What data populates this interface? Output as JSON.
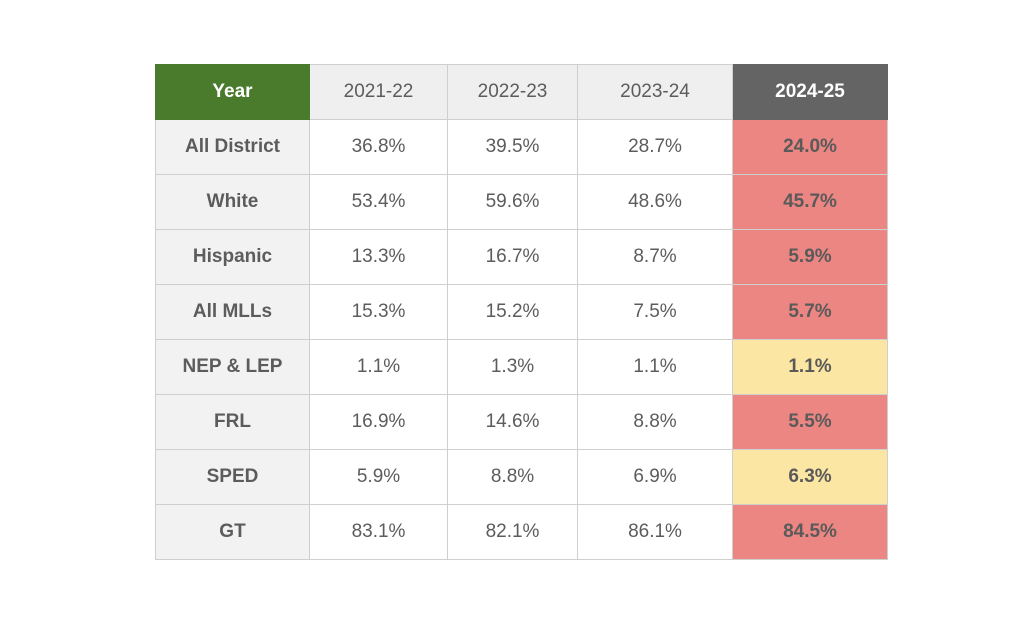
{
  "chart_data": {
    "type": "table",
    "corner_label": "Year",
    "columns": [
      "2021-22",
      "2022-23",
      "2023-24",
      "2024-25"
    ],
    "rows": [
      {
        "label": "All District",
        "values": [
          "36.8%",
          "39.5%",
          "28.7%",
          "24.0%"
        ],
        "highlight": "red"
      },
      {
        "label": "White",
        "values": [
          "53.4%",
          "59.6%",
          "48.6%",
          "45.7%"
        ],
        "highlight": "red"
      },
      {
        "label": "Hispanic",
        "values": [
          "13.3%",
          "16.7%",
          "8.7%",
          "5.9%"
        ],
        "highlight": "red"
      },
      {
        "label": "All MLLs",
        "values": [
          "15.3%",
          "15.2%",
          "7.5%",
          "5.7%"
        ],
        "highlight": "red"
      },
      {
        "label": "NEP & LEP",
        "values": [
          "1.1%",
          "1.3%",
          "1.1%",
          "1.1%"
        ],
        "highlight": "yellow"
      },
      {
        "label": "FRL",
        "values": [
          "16.9%",
          "14.6%",
          "8.8%",
          "5.5%"
        ],
        "highlight": "red"
      },
      {
        "label": "SPED",
        "values": [
          "5.9%",
          "8.8%",
          "6.9%",
          "6.3%"
        ],
        "highlight": "yellow"
      },
      {
        "label": "GT",
        "values": [
          "83.1%",
          "82.1%",
          "86.1%",
          "84.5%"
        ],
        "highlight": "red"
      }
    ],
    "colors": {
      "year_header": "#4a7a2b",
      "current_year_header": "#646464",
      "red_highlight": "#ec8683",
      "yellow_highlight": "#fbe6a3"
    }
  }
}
